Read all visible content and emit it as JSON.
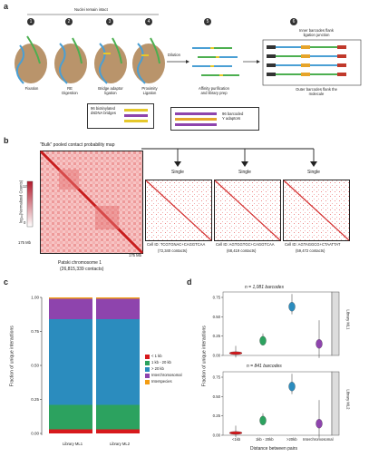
{
  "panel_a": {
    "label": "a",
    "nuclei_note": "Nuclei remain intact",
    "steps": [
      {
        "num": "1",
        "label": "Fixation"
      },
      {
        "num": "2",
        "label": "RE\nDigestion"
      },
      {
        "num": "3",
        "label": "Bridge adaptor\nligation"
      },
      {
        "num": "4",
        "label": "Proximity\nLigation"
      },
      {
        "num": "5",
        "label": "Affinity purification\nand library prep"
      },
      {
        "num": "6",
        "label": ""
      }
    ],
    "dilution": "Dilution",
    "bridges_box": "96 biotinylated\ndsDNA bridges",
    "y_adaptors_box": "96 barcoded\nY adaptors",
    "inner_note": "Inner barcodes flank\nligation junction",
    "outer_note": "Outer barcodes flank the\nmolecule"
  },
  "panel_b": {
    "label": "b",
    "bulk_title": "\"Bulk\" pooled contact probability map",
    "colorbar_label": "log₁₀(Normalized Counts)",
    "colorbar_ticks": [
      "12",
      "0"
    ],
    "axis_mark_left": "175 Mb",
    "axis_mark_bottom": "175 Mb",
    "bulk_caption_1": "Patski chromosome 1",
    "bulk_caption_2": "(26,815,339 contacts)",
    "singles": [
      {
        "title": "Single",
        "cell_id": "Cell ID: TCGTGNAC+CAGGTCAA",
        "contacts": "(72,340 contacts)"
      },
      {
        "title": "Single",
        "cell_id": "Cell ID: AGTGGTGC+CAGGTCAA",
        "contacts": "(68,419 contacts)"
      },
      {
        "title": "Single",
        "cell_id": "Cell ID: AGTAGGCG+CTAATTAT",
        "contacts": "(59,472 contacts)"
      }
    ]
  },
  "panel_c": {
    "label": "c",
    "chart_data": {
      "type": "bar",
      "stacked": true,
      "categories": [
        "Library ML1",
        "Library ML2"
      ],
      "ylabel": "Fraction of unique interactions",
      "ylim": [
        0,
        1
      ],
      "yticks": [
        "0.00",
        "0.25",
        "0.50",
        "0.75",
        "1.00"
      ],
      "series": [
        {
          "name": "< 1 kb",
          "color": "#d7191c",
          "values": [
            0.03,
            0.03
          ]
        },
        {
          "name": "1 kb - 20 kb",
          "color": "#2ca25f",
          "values": [
            0.18,
            0.18
          ]
        },
        {
          "name": "> 20 kb",
          "color": "#2b8cbe",
          "values": [
            0.63,
            0.63
          ]
        },
        {
          "name": "Interchromosomal",
          "color": "#8e44ad",
          "values": [
            0.15,
            0.15
          ]
        },
        {
          "name": "Interspecies",
          "color": "#f39c12",
          "values": [
            0.01,
            0.01
          ]
        }
      ]
    }
  },
  "panel_d": {
    "label": "d",
    "chart_data": {
      "type": "violin",
      "xlabel": "Distance between pairs",
      "ylabel": "Fraction of unique interactions",
      "categories": [
        "<1kb",
        "1kb - 20kb",
        ">20kb",
        "Interchromosomal"
      ],
      "colors": [
        "#d7191c",
        "#2ca25f",
        "#2b8cbe",
        "#8e44ad"
      ],
      "ylim": [
        0,
        0.75
      ],
      "yticks": [
        "0.00",
        "0.25",
        "0.50",
        "0.75"
      ],
      "facets": [
        {
          "title": "n = 1,081 barcodes",
          "strip": "Library ML1",
          "medians": [
            0.03,
            0.19,
            0.63,
            0.15
          ]
        },
        {
          "title": "n = 841 barcodes",
          "strip": "Library ML2",
          "medians": [
            0.03,
            0.19,
            0.63,
            0.15
          ]
        }
      ]
    }
  }
}
